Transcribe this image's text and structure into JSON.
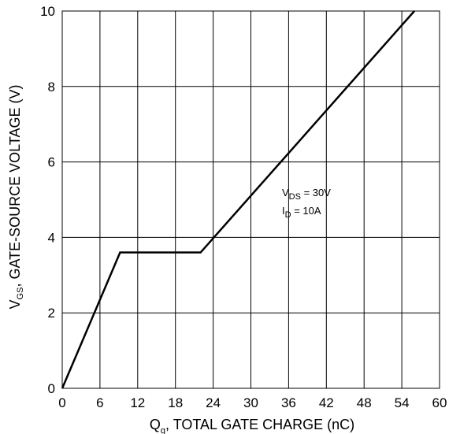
{
  "chart_data": {
    "type": "line",
    "x_ticks": [
      "0",
      "6",
      "12",
      "18",
      "24",
      "30",
      "36",
      "42",
      "48",
      "54",
      "60"
    ],
    "y_ticks": [
      "0",
      "2",
      "4",
      "6",
      "8",
      "10"
    ],
    "xlim": [
      0,
      60
    ],
    "ylim": [
      0,
      10
    ],
    "grid": true,
    "x_label": {
      "main": "Q",
      "sub": "g",
      "rest": ", TOTAL GATE CHARGE (nC)"
    },
    "y_label": {
      "main": "V",
      "sub": "GS",
      "rest": ", GATE-SOURCE VOLTAGE (V)"
    },
    "series": [
      {
        "x": [
          0,
          9.2,
          22,
          56
        ],
        "y": [
          0,
          3.6,
          3.6,
          10
        ]
      }
    ],
    "annotations": [
      {
        "main": "V",
        "sub": "DS",
        "rest": " = 30V"
      },
      {
        "main": "I",
        "sub": "D",
        "rest": " = 10A"
      }
    ],
    "colors": {
      "line": "#000000",
      "grid": "#000000",
      "background": "#ffffff"
    }
  }
}
